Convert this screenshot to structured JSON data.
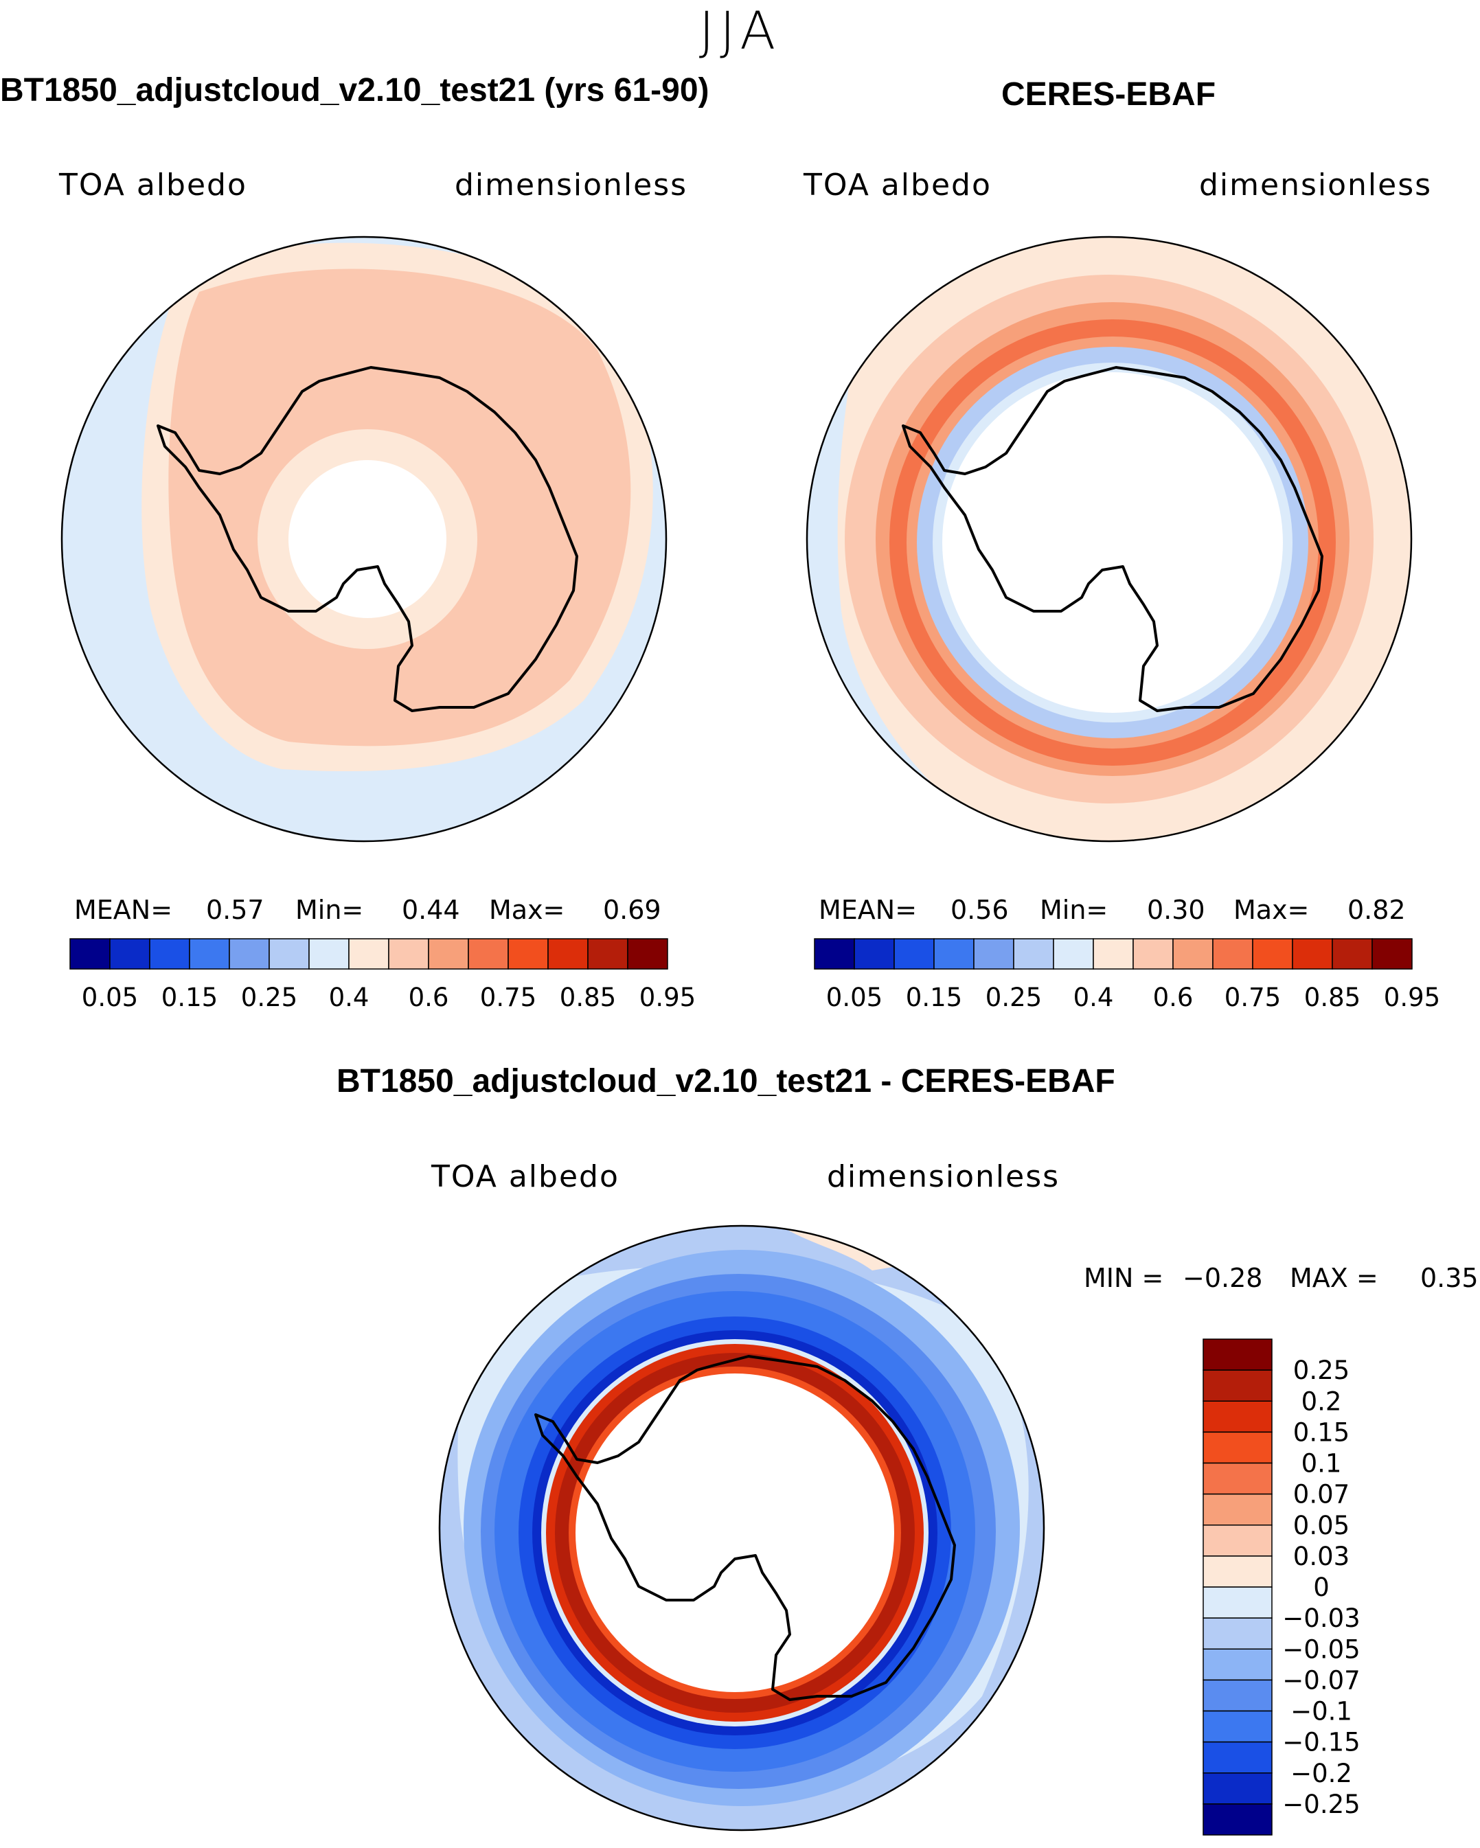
{
  "figure": {
    "season": "JJA",
    "variable": "TOA albedo",
    "units": "dimensionless"
  },
  "colors": {
    "abs_scale": [
      "#00008b",
      "#0a2bc8",
      "#1a50e6",
      "#3c78f0",
      "#78a0f0",
      "#b4ccf5",
      "#dcebfa",
      "#fde8d8",
      "#fbc8b0",
      "#f7a07a",
      "#f4734a",
      "#f24f1e",
      "#dc2e0a",
      "#b41e0a",
      "#820000"
    ],
    "diff_scale": [
      "#00008b",
      "#0a2bc8",
      "#1a50e6",
      "#3c78f0",
      "#5a8cf0",
      "#8cb4f5",
      "#b4ccf5",
      "#dcebfa",
      "#fde8d8",
      "#fbc8b0",
      "#f7a07a",
      "#f4734a",
      "#f24f1e",
      "#dc2e0a",
      "#b41e0a",
      "#820000"
    ]
  },
  "chart_data": [
    {
      "type": "heatmap",
      "projection": "south-polar-stereographic",
      "title": "BT1850_adjustcloud_v2.10_test21 (yrs 61-90)",
      "left_label": "TOA albedo",
      "right_label": "dimensionless",
      "stats": {
        "mean_label": "MEAN=",
        "mean": "0.57",
        "min_label": "Min=",
        "min": "0.44",
        "max_label": "Max=",
        "max": "0.69"
      },
      "levels": [
        0.05,
        0.1,
        0.15,
        0.2,
        0.25,
        0.3,
        0.4,
        0.5,
        0.6,
        0.7,
        0.75,
        0.8,
        0.85,
        0.9,
        0.95
      ],
      "colorbar_tick_labels": [
        "0.05",
        "0.15",
        "0.25",
        "0.4",
        "0.6",
        "0.75",
        "0.85",
        "0.95"
      ],
      "colorbar_tick_indices": [
        1,
        3,
        5,
        7,
        9,
        11,
        13,
        15
      ]
    },
    {
      "type": "heatmap",
      "projection": "south-polar-stereographic",
      "title": "CERES-EBAF",
      "left_label": "TOA albedo",
      "right_label": "dimensionless",
      "stats": {
        "mean_label": "MEAN=",
        "mean": "0.56",
        "min_label": "Min=",
        "min": "0.30",
        "max_label": "Max=",
        "max": "0.82"
      },
      "levels": [
        0.05,
        0.1,
        0.15,
        0.2,
        0.25,
        0.3,
        0.4,
        0.5,
        0.6,
        0.7,
        0.75,
        0.8,
        0.85,
        0.9,
        0.95
      ],
      "colorbar_tick_labels": [
        "0.05",
        "0.15",
        "0.25",
        "0.4",
        "0.6",
        "0.75",
        "0.85",
        "0.95"
      ],
      "colorbar_tick_indices": [
        1,
        3,
        5,
        7,
        9,
        11,
        13,
        15
      ]
    },
    {
      "type": "heatmap",
      "projection": "south-polar-stereographic",
      "title": "BT1850_adjustcloud_v2.10_test21 - CERES-EBAF",
      "left_label": "TOA albedo",
      "right_label": "dimensionless",
      "stats": {
        "min_label": "MIN =",
        "min": "−0.28",
        "max_label": "MAX =",
        "max": "0.35"
      },
      "levels": [
        -0.25,
        -0.2,
        -0.15,
        -0.1,
        -0.07,
        -0.05,
        -0.03,
        0,
        0.03,
        0.05,
        0.07,
        0.1,
        0.15,
        0.2,
        0.25
      ],
      "colorbar_tick_labels": [
        "0.25",
        "0.2",
        "0.15",
        "0.1",
        "0.07",
        "0.05",
        "0.03",
        "0",
        "−0.03",
        "−0.05",
        "−0.07",
        "−0.1",
        "−0.15",
        "−0.2",
        "−0.25"
      ]
    }
  ]
}
